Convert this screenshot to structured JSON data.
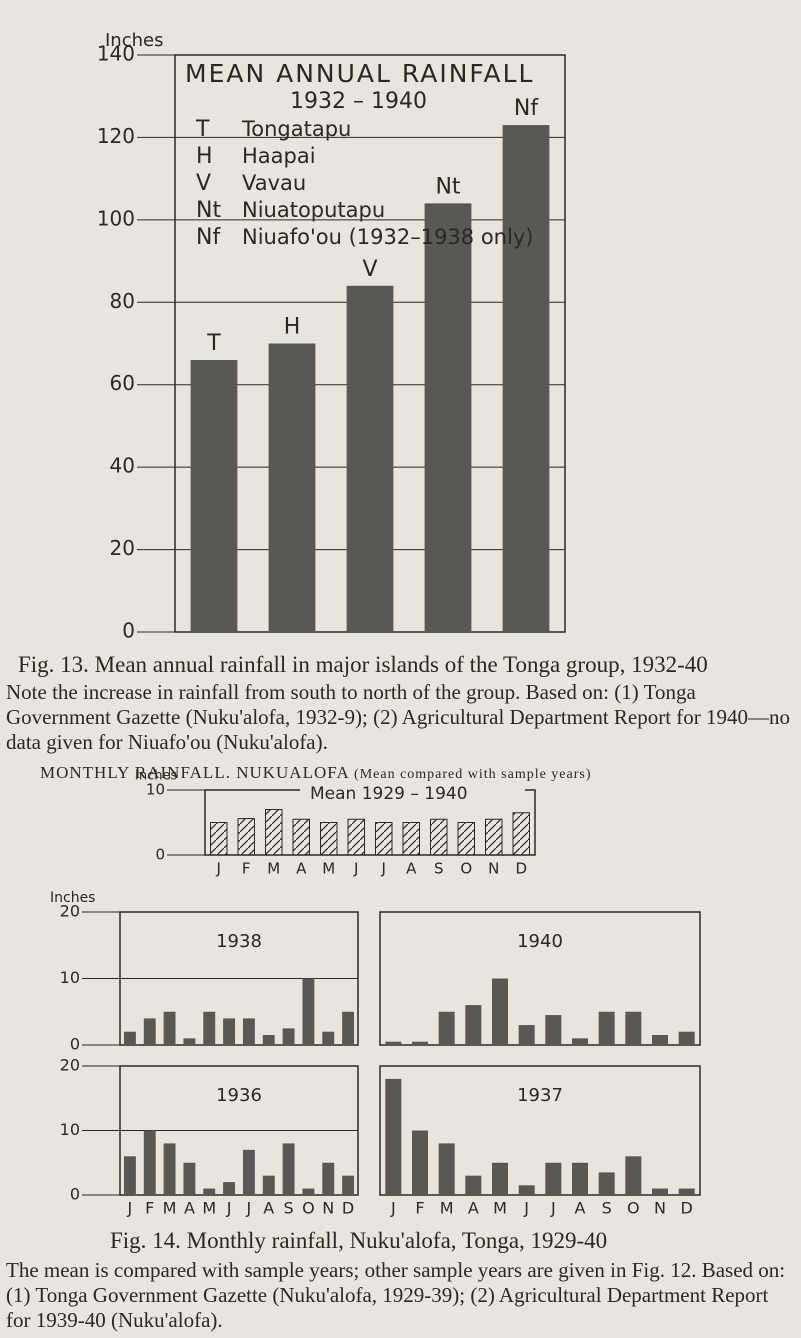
{
  "chart_data": [
    {
      "type": "bar",
      "title": "MEAN ANNUAL RAINFALL",
      "subtitle": "1932 – 1940",
      "ylabel": "Inches",
      "categories": [
        "T",
        "H",
        "V",
        "Nt",
        "Nf"
      ],
      "values": [
        66,
        70,
        84,
        104,
        123
      ],
      "legend": [
        {
          "code": "T",
          "name": "Tongatapu"
        },
        {
          "code": "H",
          "name": "Haapai"
        },
        {
          "code": "V",
          "name": "Vavau"
        },
        {
          "code": "Nt",
          "name": "Niuatoputapu"
        },
        {
          "code": "Nf",
          "name": "Niuafo'ou (1932–1938 only)"
        }
      ],
      "legend_position": "upper left",
      "ylim": [
        0,
        140
      ],
      "yticks": [
        0,
        20,
        40,
        60,
        80,
        100,
        120,
        140
      ],
      "grid": true,
      "color": "#5a5854"
    },
    {
      "type": "bar",
      "title": "Mean 1929 – 1940",
      "ylabel": "Inches",
      "categories": [
        "J",
        "F",
        "M",
        "A",
        "M",
        "J",
        "J",
        "A",
        "S",
        "O",
        "N",
        "D"
      ],
      "values": [
        5,
        5.6,
        7,
        5.5,
        5,
        5.5,
        5,
        5,
        5.5,
        5,
        5.5,
        6.5
      ],
      "ylim": [
        0,
        10
      ],
      "yticks": [
        0,
        10
      ],
      "color": "#ffffff",
      "fill_style": "hatched"
    },
    {
      "type": "bar",
      "title": "1938",
      "ylabel": "Inches",
      "values": [
        2,
        4,
        5,
        1,
        5,
        4,
        4,
        1.5,
        2.5,
        10,
        2,
        5
      ],
      "ylim": [
        0,
        20
      ],
      "yticks": [
        0,
        10,
        20
      ],
      "grid": true,
      "color": "#5a5854"
    },
    {
      "type": "bar",
      "title": "1940",
      "values": [
        0.5,
        0.5,
        5,
        6,
        10,
        3,
        4.5,
        1,
        5,
        5,
        1.5,
        2
      ],
      "ylim": [
        0,
        20
      ],
      "color": "#5a5854"
    },
    {
      "type": "bar",
      "title": "1936",
      "categories": [
        "J",
        "F",
        "M",
        "A",
        "M",
        "J",
        "J",
        "A",
        "S",
        "O",
        "N",
        "D"
      ],
      "values": [
        6,
        10,
        8,
        5,
        1,
        2,
        7,
        3,
        8,
        1,
        5,
        3
      ],
      "ylim": [
        0,
        20
      ],
      "yticks": [
        0,
        10,
        20
      ],
      "grid": true,
      "color": "#5a5854"
    },
    {
      "type": "bar",
      "title": "1937",
      "categories": [
        "J",
        "F",
        "M",
        "A",
        "M",
        "J",
        "J",
        "A",
        "S",
        "O",
        "N",
        "D"
      ],
      "values": [
        18,
        10,
        8,
        3,
        5,
        1.5,
        5,
        5,
        3.5,
        6,
        1,
        1
      ],
      "ylim": [
        0,
        20
      ],
      "color": "#5a5854"
    }
  ],
  "figure_13": {
    "caption": "Fig. 13. Mean annual rainfall in major islands of the Tonga group, 1932-40",
    "note": "Note the increase in rainfall from south to north of the group. Based on: (1) Tonga Government Gazette (Nuku'alofa, 1932-9); (2) Agricultural Department Report for 1940—no data given for Niuafo'ou (Nuku'alofa)."
  },
  "heading": "MONTHLY RAINFALL. NUKUALOFA",
  "heading_note": "(Mean compared with sample years)",
  "figure_14": {
    "caption": "Fig. 14. Monthly rainfall, Nuku'alofa, Tonga, 1929-40",
    "note": "The mean is compared with sample years; other sample years are given in Fig. 12. Based on: (1) Tonga Government Gazette (Nuku'alofa, 1929-39); (2) Agricultural Department Report for 1939-40 (Nuku'alofa)."
  }
}
